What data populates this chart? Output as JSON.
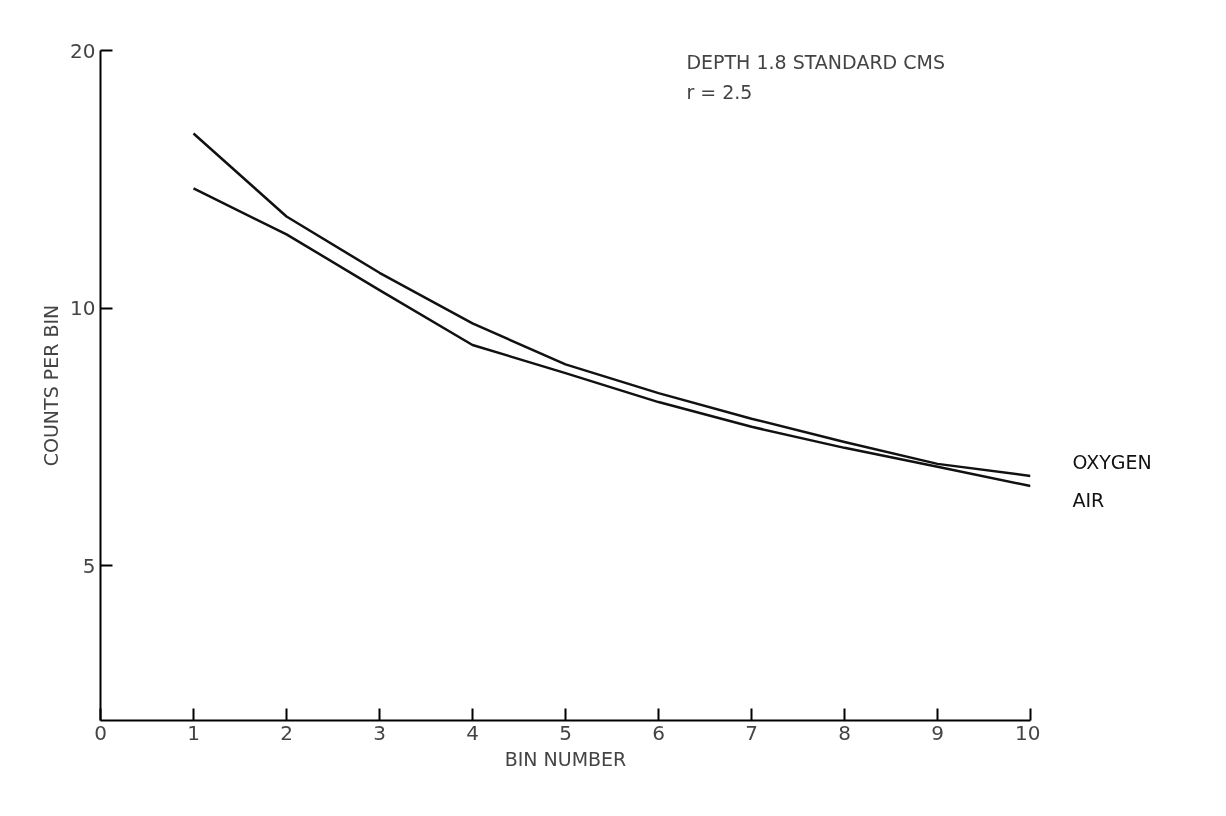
{
  "chart_data": {
    "type": "line",
    "xlabel": "BIN NUMBER",
    "ylabel": "COUNTS PER BIN",
    "annotations": [
      "DEPTH 1.8 STANDARD CMS",
      "r = 2.5"
    ],
    "x": [
      1,
      2,
      3,
      4,
      5,
      6,
      7,
      8,
      9,
      10
    ],
    "series": [
      {
        "name": "OXYGEN",
        "color": "#111111",
        "values": [
          16.0,
          12.8,
          11.0,
          9.6,
          8.6,
          7.96,
          7.43,
          6.98,
          6.58,
          6.37
        ]
      },
      {
        "name": "AIR",
        "color": "#111111",
        "values": [
          13.8,
          12.2,
          10.5,
          9.06,
          8.4,
          7.77,
          7.27,
          6.87,
          6.53,
          6.2
        ]
      }
    ],
    "log": "y",
    "xlim": [
      0,
      10
    ],
    "ylim": [
      3.3,
      20
    ],
    "xticks": [
      0,
      1,
      2,
      3,
      4,
      5,
      6,
      7,
      8,
      9,
      10
    ],
    "yticks": [
      5,
      10,
      20
    ],
    "grid": false,
    "marker": "none",
    "line_style": "solid"
  }
}
